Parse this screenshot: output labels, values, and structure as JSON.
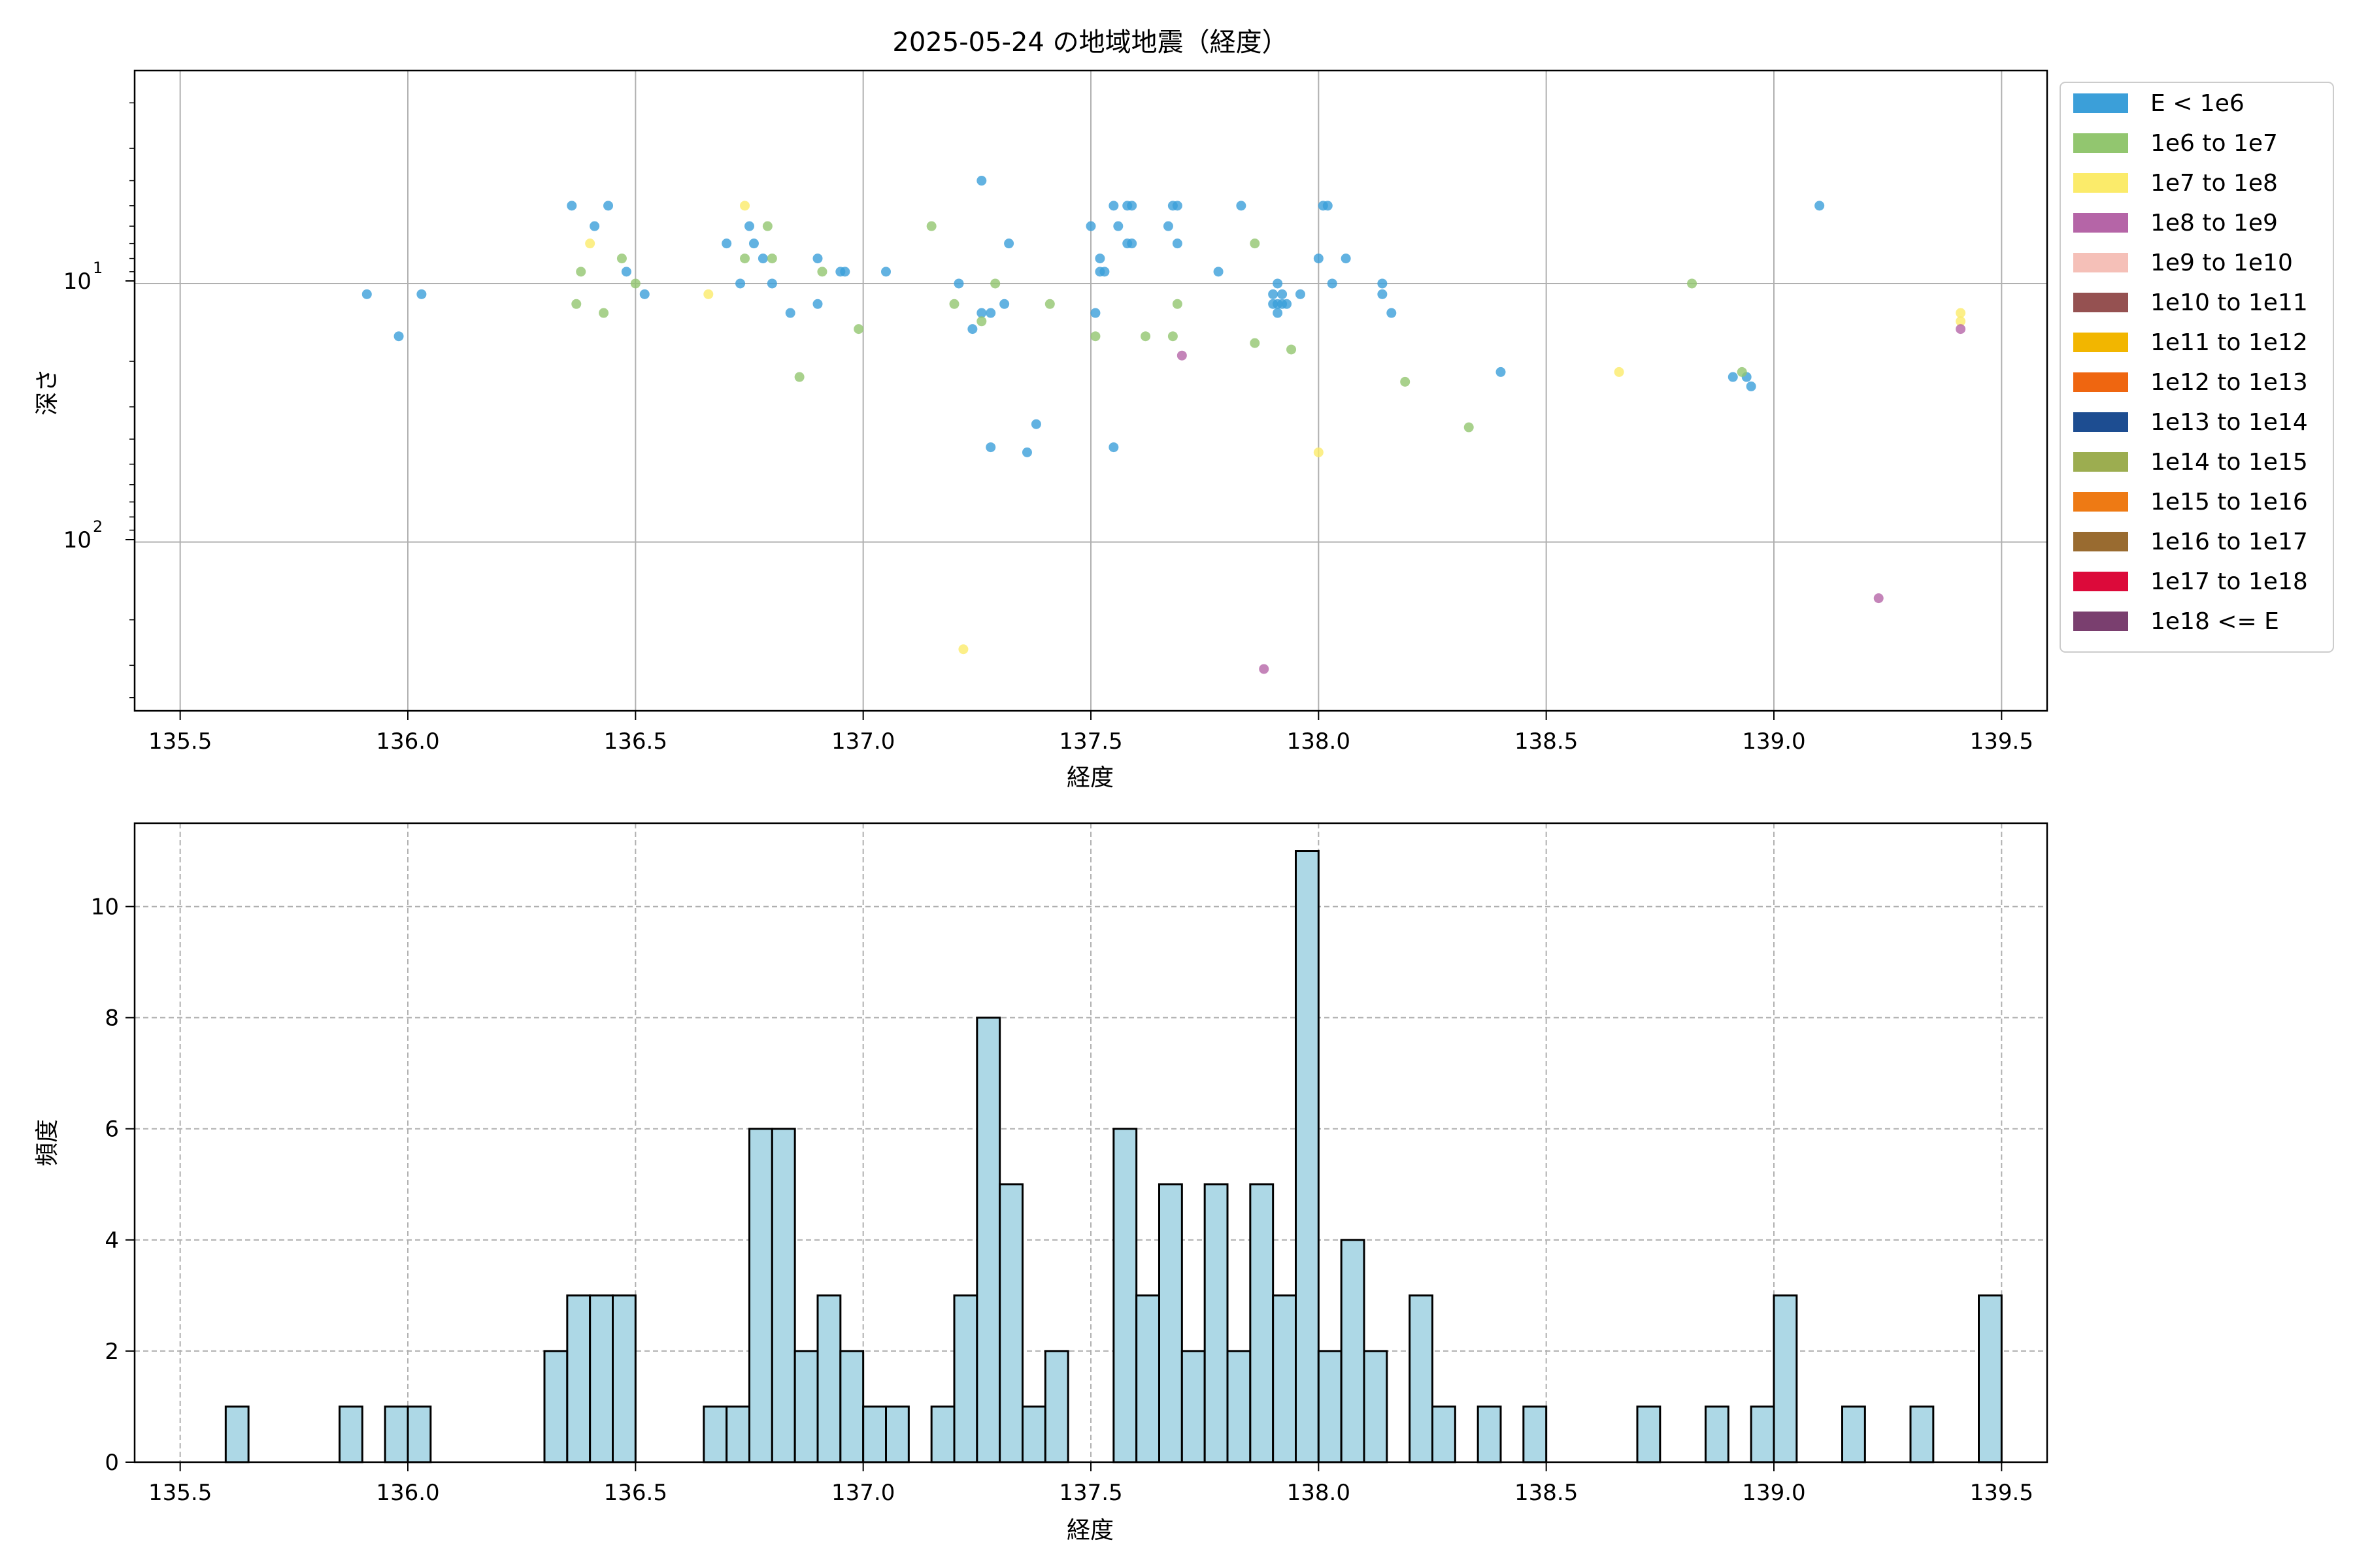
{
  "title": "2025-05-24 の地域地震（経度）",
  "colors": {
    "scatter_point_default": "#3b9fd9",
    "hist_bar_fill": "#add8e6",
    "hist_bar_edge": "#000000",
    "grid": "#b0b0b0"
  },
  "chart_data": [
    {
      "type": "scatter",
      "xlabel": "経度",
      "ylabel": "深さ",
      "xlim": [
        135.4,
        139.6
      ],
      "ylim": [
        450,
        1.5
      ],
      "y_scale": "log",
      "y_inverted": true,
      "x_ticks": [
        "135.5",
        "136.0",
        "136.5",
        "137.0",
        "137.5",
        "138.0",
        "138.5",
        "139.0",
        "139.5"
      ],
      "y_tick_labels": [
        {
          "value": 10,
          "label": "10^1"
        },
        {
          "value": 100,
          "label": "10^2"
        }
      ],
      "grid": true,
      "legend_placement": "outside-right",
      "legend": [
        {
          "label": "E < 1e6",
          "color": "#3b9fd9"
        },
        {
          "label": "1e6 to 1e7",
          "color": "#92c66f"
        },
        {
          "label": "1e7 to 1e8",
          "color": "#fbeb6a"
        },
        {
          "label": "1e8 to 1e9",
          "color": "#b565a7"
        },
        {
          "label": "1e9 to 1e10",
          "color": "#f5c0b8"
        },
        {
          "label": "1e10 to 1e11",
          "color": "#955151"
        },
        {
          "label": "1e11 to 1e12",
          "color": "#f2b600"
        },
        {
          "label": "1e12 to 1e13",
          "color": "#ef6610"
        },
        {
          "label": "1e13 to 1e14",
          "color": "#1d4d91"
        },
        {
          "label": "1e14 to 1e15",
          "color": "#9cad50"
        },
        {
          "label": "1e15 to 1e16",
          "color": "#ee7a14"
        },
        {
          "label": "1e16 to 1e17",
          "color": "#996b30"
        },
        {
          "label": "1e17 to 1e18",
          "color": "#dc0a3a"
        },
        {
          "label": "1e18 <= E",
          "color": "#7a3f6f"
        }
      ],
      "series": [
        {
          "class_index": 0,
          "points": [
            [
              135.91,
              11
            ],
            [
              135.98,
              16
            ],
            [
              136.03,
              11
            ],
            [
              136.36,
              5
            ],
            [
              136.41,
              6
            ],
            [
              136.44,
              5
            ],
            [
              136.48,
              9
            ],
            [
              136.52,
              11
            ],
            [
              136.7,
              7
            ],
            [
              136.73,
              10
            ],
            [
              136.75,
              6
            ],
            [
              136.76,
              7
            ],
            [
              136.78,
              8
            ],
            [
              136.8,
              10
            ],
            [
              136.84,
              13
            ],
            [
              136.9,
              8
            ],
            [
              136.9,
              12
            ],
            [
              136.95,
              9
            ],
            [
              136.96,
              9
            ],
            [
              137.05,
              9
            ],
            [
              137.21,
              10
            ],
            [
              137.24,
              15
            ],
            [
              137.26,
              4
            ],
            [
              137.26,
              13
            ],
            [
              137.28,
              13
            ],
            [
              137.28,
              43
            ],
            [
              137.31,
              12
            ],
            [
              137.32,
              7
            ],
            [
              137.36,
              45
            ],
            [
              137.38,
              35
            ],
            [
              137.5,
              6
            ],
            [
              137.51,
              13
            ],
            [
              137.52,
              8
            ],
            [
              137.52,
              9
            ],
            [
              137.53,
              9
            ],
            [
              137.55,
              5
            ],
            [
              137.55,
              43
            ],
            [
              137.56,
              6
            ],
            [
              137.58,
              5
            ],
            [
              137.58,
              7
            ],
            [
              137.59,
              5
            ],
            [
              137.59,
              7
            ],
            [
              137.67,
              6
            ],
            [
              137.68,
              5
            ],
            [
              137.69,
              7
            ],
            [
              137.69,
              5
            ],
            [
              137.78,
              9
            ],
            [
              137.83,
              5
            ],
            [
              137.9,
              11
            ],
            [
              137.9,
              12
            ],
            [
              137.91,
              10
            ],
            [
              137.91,
              12
            ],
            [
              137.91,
              13
            ],
            [
              137.92,
              11
            ],
            [
              137.92,
              12
            ],
            [
              137.93,
              12
            ],
            [
              137.96,
              11
            ],
            [
              138.0,
              8
            ],
            [
              138.01,
              5
            ],
            [
              138.02,
              5
            ],
            [
              138.03,
              10
            ],
            [
              138.06,
              8
            ],
            [
              138.14,
              10
            ],
            [
              138.14,
              11
            ],
            [
              138.16,
              13
            ],
            [
              138.4,
              22
            ],
            [
              138.91,
              23
            ],
            [
              138.94,
              23
            ],
            [
              138.95,
              25
            ],
            [
              139.1,
              5
            ]
          ]
        },
        {
          "class_index": 1,
          "points": [
            [
              136.37,
              12
            ],
            [
              136.38,
              9
            ],
            [
              136.43,
              13
            ],
            [
              136.47,
              8
            ],
            [
              136.5,
              10
            ],
            [
              136.74,
              8
            ],
            [
              136.79,
              6
            ],
            [
              136.8,
              8
            ],
            [
              136.86,
              23
            ],
            [
              136.91,
              9
            ],
            [
              136.99,
              15
            ],
            [
              137.15,
              6
            ],
            [
              137.2,
              12
            ],
            [
              137.26,
              14
            ],
            [
              137.29,
              10
            ],
            [
              137.41,
              12
            ],
            [
              137.51,
              16
            ],
            [
              137.62,
              16
            ],
            [
              137.68,
              16
            ],
            [
              137.69,
              12
            ],
            [
              137.86,
              7
            ],
            [
              137.86,
              17
            ],
            [
              137.94,
              18
            ],
            [
              138.19,
              24
            ],
            [
              138.33,
              36
            ],
            [
              138.82,
              10
            ],
            [
              138.93,
              22
            ]
          ]
        },
        {
          "class_index": 2,
          "points": [
            [
              136.4,
              7
            ],
            [
              136.66,
              11
            ],
            [
              136.74,
              5
            ],
            [
              137.22,
              260
            ],
            [
              138.0,
              45
            ],
            [
              138.66,
              22
            ],
            [
              139.41,
              13
            ],
            [
              139.41,
              14
            ]
          ]
        },
        {
          "class_index": 3,
          "points": [
            [
              137.7,
              19
            ],
            [
              137.88,
              310
            ],
            [
              139.23,
              165
            ],
            [
              139.41,
              15
            ]
          ]
        }
      ]
    },
    {
      "type": "bar",
      "xlabel": "経度",
      "ylabel": "頻度",
      "xlim": [
        135.4,
        139.6
      ],
      "ylim": [
        0,
        11.5
      ],
      "x_ticks": [
        "135.5",
        "136.0",
        "136.5",
        "137.0",
        "137.5",
        "138.0",
        "138.5",
        "139.0",
        "139.5"
      ],
      "y_ticks": [
        "0",
        "2",
        "4",
        "6",
        "8",
        "10"
      ],
      "grid": true,
      "bin_start": 135.6,
      "bin_width": 0.05,
      "bin_counts": [
        1,
        0,
        0,
        0,
        0,
        1,
        0,
        1,
        1,
        0,
        0,
        0,
        0,
        0,
        2,
        3,
        3,
        3,
        0,
        0,
        0,
        1,
        1,
        6,
        6,
        2,
        3,
        2,
        1,
        1,
        0,
        1,
        3,
        8,
        5,
        1,
        2,
        0,
        0,
        6,
        3,
        5,
        2,
        5,
        2,
        5,
        3,
        11,
        2,
        4,
        2,
        0,
        3,
        1,
        0,
        1,
        0,
        1,
        0,
        0,
        0,
        0,
        1,
        0,
        0,
        1,
        0,
        1,
        3,
        0,
        0,
        1,
        0,
        0,
        1,
        0,
        0,
        3
      ]
    }
  ]
}
